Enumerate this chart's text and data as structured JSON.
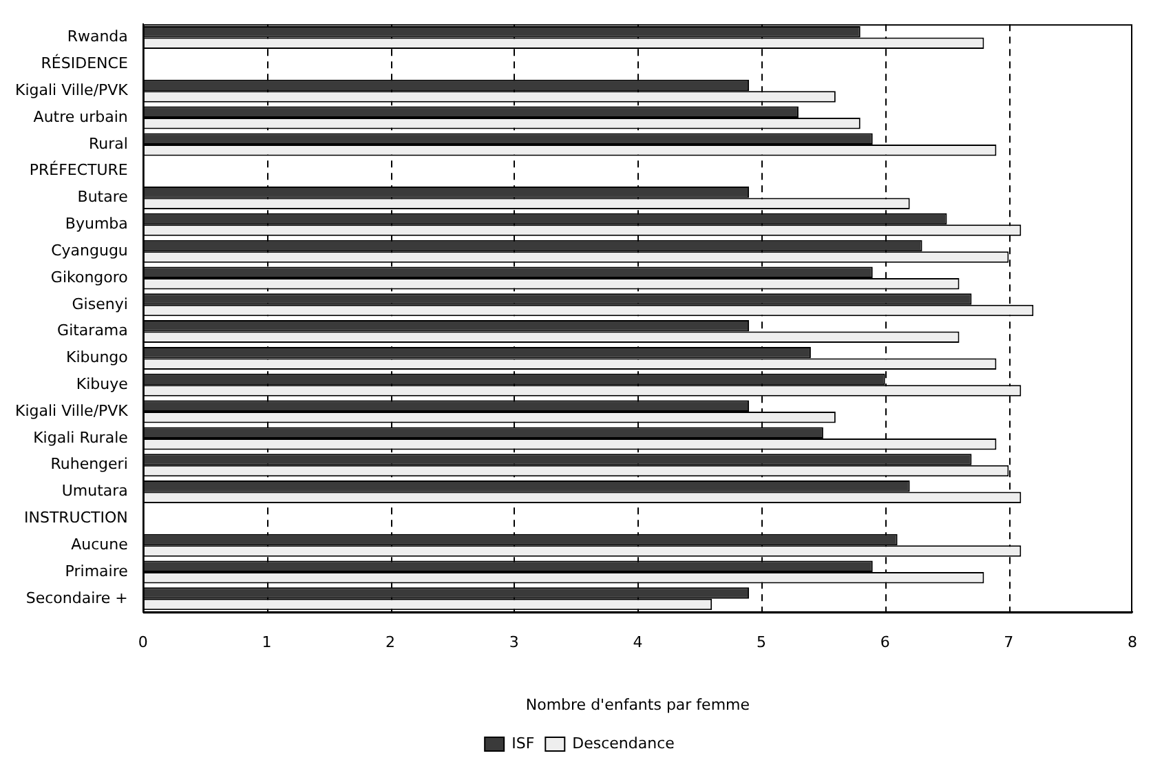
{
  "chart_data": {
    "type": "bar",
    "orientation": "horizontal",
    "xlabel": "Nombre d'enfants par femme",
    "categories": [
      "Rwanda",
      "RÉSIDENCE",
      "Kigali Ville/PVK",
      "Autre urbain",
      "Rural",
      "PRÉFECTURE",
      "Butare",
      "Byumba",
      "Cyangugu",
      "Gikongoro",
      "Gisenyi",
      "Gitarama",
      "Kibungo",
      "Kibuye",
      "Kigali Ville/PVK",
      "Kigali Rurale",
      "Ruhengeri",
      "Umutara",
      "INSTRUCTION",
      "Aucune",
      "Primaire",
      "Secondaire +"
    ],
    "series": [
      {
        "name": "ISF",
        "color": "#3a3a3a",
        "values": [
          5.8,
          null,
          4.9,
          5.3,
          5.9,
          null,
          4.9,
          6.5,
          6.3,
          5.9,
          6.7,
          4.9,
          5.4,
          6.0,
          4.9,
          5.5,
          6.7,
          6.2,
          null,
          6.1,
          5.9,
          4.9
        ]
      },
      {
        "name": "Descendance",
        "color": "#eeeeee",
        "values": [
          6.8,
          null,
          5.6,
          5.8,
          6.9,
          null,
          6.2,
          7.1,
          7.0,
          6.6,
          7.2,
          6.6,
          6.9,
          7.1,
          5.6,
          6.9,
          7.0,
          7.1,
          null,
          7.1,
          6.8,
          4.6
        ]
      }
    ],
    "xlim": [
      0,
      8
    ],
    "xticks": [
      0,
      1,
      2,
      3,
      4,
      5,
      6,
      7,
      8
    ],
    "grid": "x",
    "legend": "bottom"
  }
}
